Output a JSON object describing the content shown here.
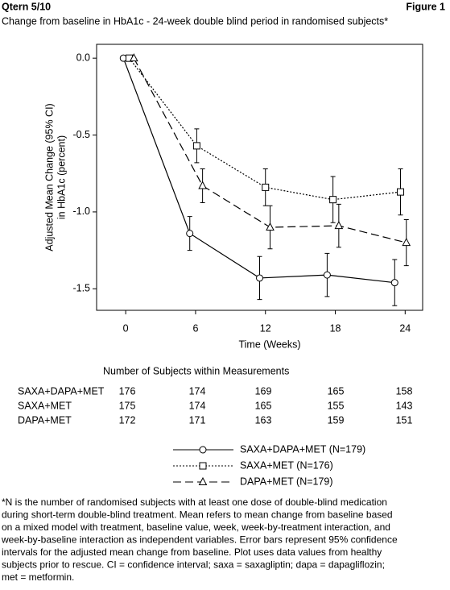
{
  "header": {
    "left": "Qtern 5/10",
    "right": "Figure 1"
  },
  "chart_data": {
    "type": "line",
    "title": "Change from baseline in HbA1c - 24-week double blind period in randomised subjects*",
    "xlabel": "Time (Weeks)",
    "ylabel": [
      "Adjusted Mean Change (95% CI)",
      "in HbA1c (percent)"
    ],
    "xlim": [
      -2.5,
      25.5
    ],
    "ylim": [
      -1.64,
      0.09
    ],
    "xticks": [
      0,
      6,
      12,
      18,
      24
    ],
    "yticks": [
      {
        "value": 0,
        "label": "0.0"
      },
      -0.5,
      {
        "value": -1,
        "label": "-1.0"
      },
      -1.5
    ],
    "series": [
      {
        "name": "SAXA+DAPA+MET (N=179)",
        "color": "#000000",
        "dash": "solid",
        "marker": "circle",
        "x": [
          -0.2,
          5.5,
          11.5,
          17.3,
          23.1
        ],
        "values": [
          0,
          -1.14,
          -1.43,
          -1.41,
          -1.46
        ],
        "errors": [
          0,
          0.11,
          0.14,
          0.14,
          0.15
        ]
      },
      {
        "name": "SAXA+MET (N=176)",
        "color": "#000000",
        "dash": "dotted",
        "marker": "square",
        "x": [
          0.3,
          6.1,
          12.0,
          17.8,
          23.6
        ],
        "values": [
          0,
          -0.57,
          -0.84,
          -0.92,
          -0.87
        ],
        "errors": [
          0,
          0.11,
          0.12,
          0.15,
          0.15
        ]
      },
      {
        "name": "DAPA+MET (N=179)",
        "color": "#000000",
        "dash": "dashed",
        "marker": "triangle",
        "x": [
          0.7,
          6.6,
          12.4,
          18.3,
          24.1
        ],
        "values": [
          0,
          -0.83,
          -1.1,
          -1.09,
          -1.2
        ],
        "errors": [
          0,
          0.11,
          0.14,
          0.14,
          0.15
        ]
      }
    ],
    "subject_table": {
      "title": "Number of Subjects within Measurements",
      "rows": [
        {
          "label": "SAXA+DAPA+MET",
          "counts": [
            "176",
            "174",
            "169",
            "165",
            "158"
          ]
        },
        {
          "label": "SAXA+MET",
          "counts": [
            "175",
            "174",
            "165",
            "155",
            "143"
          ]
        },
        {
          "label": "DAPA+MET",
          "counts": [
            "172",
            "171",
            "163",
            "159",
            "151"
          ]
        }
      ]
    }
  },
  "footnote": [
    "*N is the number of randomised subjects with at least one dose of double-blind medication",
    "during short-term double-blind treatment. Mean refers to mean change from baseline based",
    "on a mixed model with treatment, baseline value, week, week-by-treatment interaction, and",
    "week-by-baseline interaction as independent variables. Error bars represent 95% confidence",
    "intervals for the adjusted mean change from baseline. Plot uses data values from healthy",
    "subjects prior to rescue. CI = confidence interval; saxa = saxagliptin; dapa = dapagliflozin;",
    "met = metformin."
  ]
}
